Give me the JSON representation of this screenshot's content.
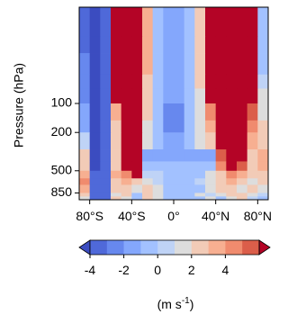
{
  "chart_data": {
    "type": "heatmap",
    "title": "",
    "xlabel": "",
    "ylabel": "Pressure (hPa)",
    "x_tick_labels": [
      "80°S",
      "40°S",
      "0°",
      "40°N",
      "80°N"
    ],
    "x_tick_values": [
      -80,
      -40,
      0,
      40,
      80
    ],
    "y_tick_labels": [
      "100",
      "200",
      "500",
      "850"
    ],
    "y_tick_values": [
      100,
      200,
      500,
      850
    ],
    "y_scale": "log",
    "y_reversed": true,
    "xlim": [
      -90,
      90
    ],
    "ylim": [
      1000,
      10
    ],
    "lat_edges": [
      -90,
      -80,
      -70,
      -60,
      -50,
      -40,
      -30,
      -20,
      -10,
      0,
      10,
      20,
      30,
      40,
      50,
      60,
      70,
      80,
      90
    ],
    "pressure_edges": [
      10,
      20,
      30,
      50,
      70,
      100,
      150,
      200,
      300,
      400,
      500,
      600,
      700,
      850,
      925,
      1000
    ],
    "values": [
      [
        -3.5,
        -4.5,
        -3.5,
        5,
        5,
        5,
        2,
        -1,
        -2.5,
        -2.5,
        -1,
        1,
        5,
        5,
        5,
        5,
        5,
        -1
      ],
      [
        -3.5,
        -4.5,
        -3.5,
        5,
        5,
        5,
        2,
        -1,
        -2.5,
        -2.5,
        -1,
        1,
        5,
        5,
        5,
        5,
        5,
        -1
      ],
      [
        -3,
        -4.5,
        -3.5,
        5,
        5,
        5,
        2,
        -1,
        -2.5,
        -2.5,
        -1,
        1,
        5,
        5,
        5,
        5,
        5,
        -1
      ],
      [
        -3,
        -4.5,
        -3.5,
        5,
        5,
        5,
        1.5,
        -1,
        -2.5,
        -2.5,
        -1,
        1,
        5,
        5,
        5,
        5,
        5,
        -0.5
      ],
      [
        -3,
        -4.5,
        -3.5,
        5,
        5,
        5,
        1.5,
        -1,
        -2.5,
        -2.5,
        -1,
        0.5,
        5,
        5,
        5,
        5,
        5,
        0
      ],
      [
        -2.5,
        -4.5,
        -3.5,
        2,
        5,
        5,
        1,
        -1.5,
        -3,
        -3,
        -1.5,
        0.5,
        3,
        5,
        5,
        5,
        4,
        0.5
      ],
      [
        -2,
        -4.5,
        -3.5,
        1.5,
        5,
        5,
        0.5,
        -1.5,
        -3,
        -3,
        -1.5,
        0,
        2,
        5,
        5,
        5,
        3,
        1
      ],
      [
        -0.5,
        -4.5,
        -3.5,
        1,
        5,
        5,
        0,
        -1,
        -2.5,
        -2.5,
        -1,
        0,
        1,
        5,
        5,
        5,
        2,
        1.5
      ],
      [
        1,
        -4.5,
        -3.5,
        1,
        5,
        5,
        -2,
        -2.5,
        -2.5,
        -2,
        -2.5,
        -2.5,
        -2.5,
        4,
        5,
        5,
        1,
        2
      ],
      [
        1.5,
        -4.5,
        -3.5,
        1.5,
        5,
        5,
        -1.5,
        -1.5,
        -1.5,
        -1.5,
        -1.5,
        -1.5,
        -1,
        3,
        5,
        4,
        1.5,
        2
      ],
      [
        2,
        -4,
        -3.5,
        2,
        2.5,
        5,
        -0.5,
        -0.5,
        -1,
        -1,
        -1,
        -1,
        0,
        1.5,
        3,
        2,
        1,
        1.5
      ],
      [
        2.5,
        -4,
        -3.5,
        1.5,
        2,
        1,
        0.5,
        -0.5,
        -1,
        -1,
        -1,
        -0.5,
        0.5,
        1,
        2,
        1.5,
        0.5,
        1
      ],
      [
        2,
        -4,
        -3.5,
        1.5,
        1,
        0.5,
        1,
        0,
        -1,
        -1,
        -1.5,
        -1,
        0,
        1.5,
        1,
        0.5,
        1,
        0.5
      ],
      [
        1.5,
        -3.5,
        -3.5,
        0.5,
        1,
        -1,
        1.5,
        0.5,
        -1,
        -1,
        -1,
        0.5,
        -0.5,
        0.5,
        1.5,
        1,
        0,
        -0.5
      ],
      [
        0.5,
        -3.5,
        -3.5,
        1,
        0,
        -1,
        1,
        0.5,
        -1,
        -1,
        -1,
        -1,
        0,
        -1,
        0,
        1.5,
        -0.5,
        -1
      ]
    ],
    "colorbar": {
      "min": -5,
      "max": 5,
      "step": 1,
      "extend": "both",
      "tick_labels": [
        "-4",
        "-2",
        "0",
        "2",
        "4"
      ],
      "tick_values": [
        -4,
        -2,
        0,
        2,
        4
      ],
      "label": "(m s-1)",
      "label_base": "(m s",
      "label_exp": "-1",
      "label_close": ")",
      "colors": [
        "#3b4cc0",
        "#4f69d9",
        "#6788ee",
        "#84a7fc",
        "#a2c1ff",
        "#bfd3f6",
        "#dddddd",
        "#f2cbb7",
        "#f7af91",
        "#f08b6e",
        "#db5e4a",
        "#b40426"
      ],
      "cmap": "coolwarm"
    }
  }
}
